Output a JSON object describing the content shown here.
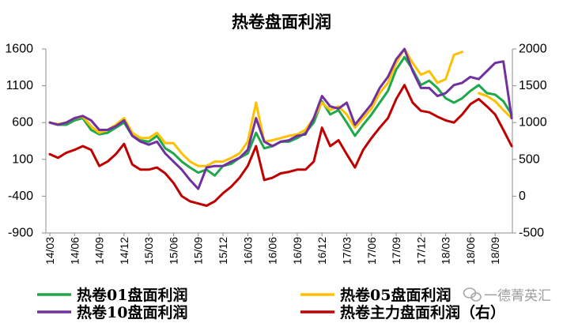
{
  "chart_data": {
    "type": "line",
    "title": "热卷盘面利润",
    "x": [
      "2014-03",
      "2014-04",
      "2014-05",
      "2014-06",
      "2014-07",
      "2014-08",
      "2014-09",
      "2014-10",
      "2014-11",
      "2014-12",
      "2015-01",
      "2015-02",
      "2015-03",
      "2015-04",
      "2015-05",
      "2015-06",
      "2015-07",
      "2015-08",
      "2015-09",
      "2015-10",
      "2015-11",
      "2015-12",
      "2016-01",
      "2016-02",
      "2016-03",
      "2016-04",
      "2016-05",
      "2016-06",
      "2016-07",
      "2016-08",
      "2016-09",
      "2016-10",
      "2016-11",
      "2016-12",
      "2017-01",
      "2017-02",
      "2017-03",
      "2017-04",
      "2017-05",
      "2017-06",
      "2017-07",
      "2017-08",
      "2017-09",
      "2017-10",
      "2017-11",
      "2017-12",
      "2018-01",
      "2018-02",
      "2018-03",
      "2018-04",
      "2018-05",
      "2018-06",
      "2018-07",
      "2018-08",
      "2018-09",
      "2018-10",
      "2018-11"
    ],
    "xticks": [
      "14/03",
      "14/06",
      "14/09",
      "14/12",
      "15/03",
      "15/06",
      "15/09",
      "15/12",
      "16/03",
      "16/06",
      "16/09",
      "16/12",
      "17/03",
      "17/06",
      "17/09",
      "17/12",
      "18/03",
      "18/06",
      "18/09"
    ],
    "yticks_left": [
      1600,
      1100,
      600,
      100,
      -400,
      -900
    ],
    "yticks_right": [
      2000,
      1500,
      1000,
      500,
      0,
      -500
    ],
    "ylim_left": [
      -900,
      1600
    ],
    "ylim_right": [
      -500,
      2000
    ],
    "grid": false,
    "legend_position": "bottom",
    "series": [
      {
        "name": "热卷01盘面利润",
        "axis": "left",
        "color": "#1fa84a",
        "values": [
          600,
          570,
          570,
          630,
          660,
          500,
          440,
          460,
          530,
          600,
          420,
          360,
          340,
          420,
          250,
          180,
          70,
          -10,
          -80,
          -40,
          -120,
          10,
          40,
          120,
          180,
          460,
          250,
          280,
          340,
          340,
          390,
          460,
          600,
          890,
          710,
          770,
          600,
          420,
          570,
          710,
          870,
          1030,
          1320,
          1490,
          1320,
          1110,
          1170,
          1070,
          930,
          870,
          930,
          1030,
          1110,
          1000,
          980,
          890,
          710
        ]
      },
      {
        "name": "热卷05盘面利润",
        "axis": "left",
        "color": "#ffc000",
        "values": [
          600,
          580,
          600,
          660,
          680,
          550,
          460,
          500,
          570,
          660,
          460,
          390,
          390,
          460,
          320,
          320,
          180,
          70,
          10,
          10,
          70,
          70,
          120,
          180,
          340,
          870,
          340,
          360,
          390,
          420,
          440,
          500,
          660,
          870,
          770,
          820,
          710,
          530,
          660,
          790,
          1000,
          1140,
          1410,
          1600,
          1410,
          1250,
          1300,
          1140,
          1190,
          1520,
          1560,
          null,
          1000,
          960,
          890,
          770,
          660
        ]
      },
      {
        "name": "热卷10盘面利润",
        "axis": "left",
        "color": "#7030a0",
        "values": [
          600,
          570,
          600,
          660,
          690,
          630,
          500,
          500,
          550,
          630,
          420,
          340,
          300,
          340,
          180,
          70,
          -40,
          -180,
          -300,
          -10,
          10,
          10,
          70,
          120,
          230,
          660,
          340,
          280,
          340,
          360,
          420,
          440,
          660,
          960,
          820,
          790,
          870,
          570,
          710,
          850,
          1070,
          1220,
          1460,
          1600,
          1300,
          1070,
          1070,
          960,
          1000,
          1110,
          1140,
          1220,
          1190,
          1300,
          1410,
          1430,
          660
        ]
      },
      {
        "name": "热卷主力盘面利润（右）",
        "axis": "right",
        "color": "#c00000",
        "values": [
          570,
          520,
          590,
          630,
          680,
          630,
          410,
          470,
          570,
          710,
          430,
          360,
          360,
          390,
          310,
          180,
          0,
          -70,
          -100,
          -130,
          -70,
          40,
          130,
          250,
          410,
          680,
          220,
          250,
          310,
          330,
          360,
          360,
          470,
          930,
          680,
          760,
          570,
          390,
          630,
          790,
          930,
          1060,
          1320,
          1510,
          1270,
          1160,
          1140,
          1080,
          1030,
          1000,
          1110,
          1250,
          1320,
          1220,
          1110,
          900,
          680
        ]
      }
    ]
  },
  "watermark": {
    "text": "一德菁英汇",
    "icon": "wechat-icon"
  }
}
